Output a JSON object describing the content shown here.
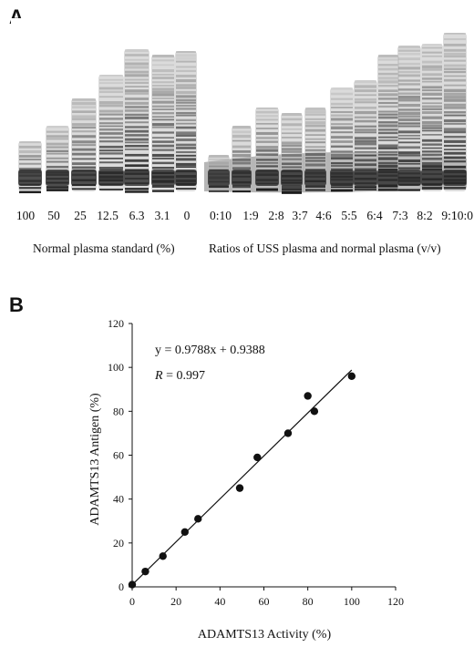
{
  "panel_a": {
    "letter": "A",
    "left_gel": {
      "lane_labels": [
        "100",
        "50",
        "25",
        "12.5",
        "6.3",
        "3.1",
        "0"
      ],
      "caption": "Normal plasma standard (%)"
    },
    "right_gel": {
      "lane_labels": [
        "0:10",
        "1:9",
        "2:8",
        "3:7",
        "4:6",
        "5:5",
        "6:4",
        "7:3",
        "8:2",
        "9:1",
        "10:0"
      ],
      "caption": "Ratios of USS plasma and normal plasma (v/v)"
    }
  },
  "panel_b": {
    "letter": "B",
    "equation": "y = 0.9788x + 0.9388",
    "r_symbol": "R",
    "r_value": " = 0.997"
  },
  "chart_data": {
    "type": "scatter",
    "xlabel": "ADAMTS13 Activity (%)",
    "ylabel": "ADAMTS13 Antigen (%)",
    "xlim": [
      0,
      120
    ],
    "ylim": [
      0,
      120
    ],
    "x_ticks": [
      0,
      20,
      40,
      60,
      80,
      100,
      120
    ],
    "y_ticks": [
      0,
      20,
      40,
      60,
      80,
      100,
      120
    ],
    "grid": false,
    "points": [
      {
        "x": 0,
        "y": 1
      },
      {
        "x": 6,
        "y": 7
      },
      {
        "x": 14,
        "y": 14
      },
      {
        "x": 24,
        "y": 25
      },
      {
        "x": 30,
        "y": 31
      },
      {
        "x": 49,
        "y": 45
      },
      {
        "x": 57,
        "y": 59
      },
      {
        "x": 71,
        "y": 70
      },
      {
        "x": 80,
        "y": 87
      },
      {
        "x": 83,
        "y": 80
      },
      {
        "x": 100,
        "y": 96
      }
    ],
    "fit": {
      "slope": 0.9788,
      "intercept": 0.9388,
      "x_range": [
        0,
        100
      ]
    }
  }
}
